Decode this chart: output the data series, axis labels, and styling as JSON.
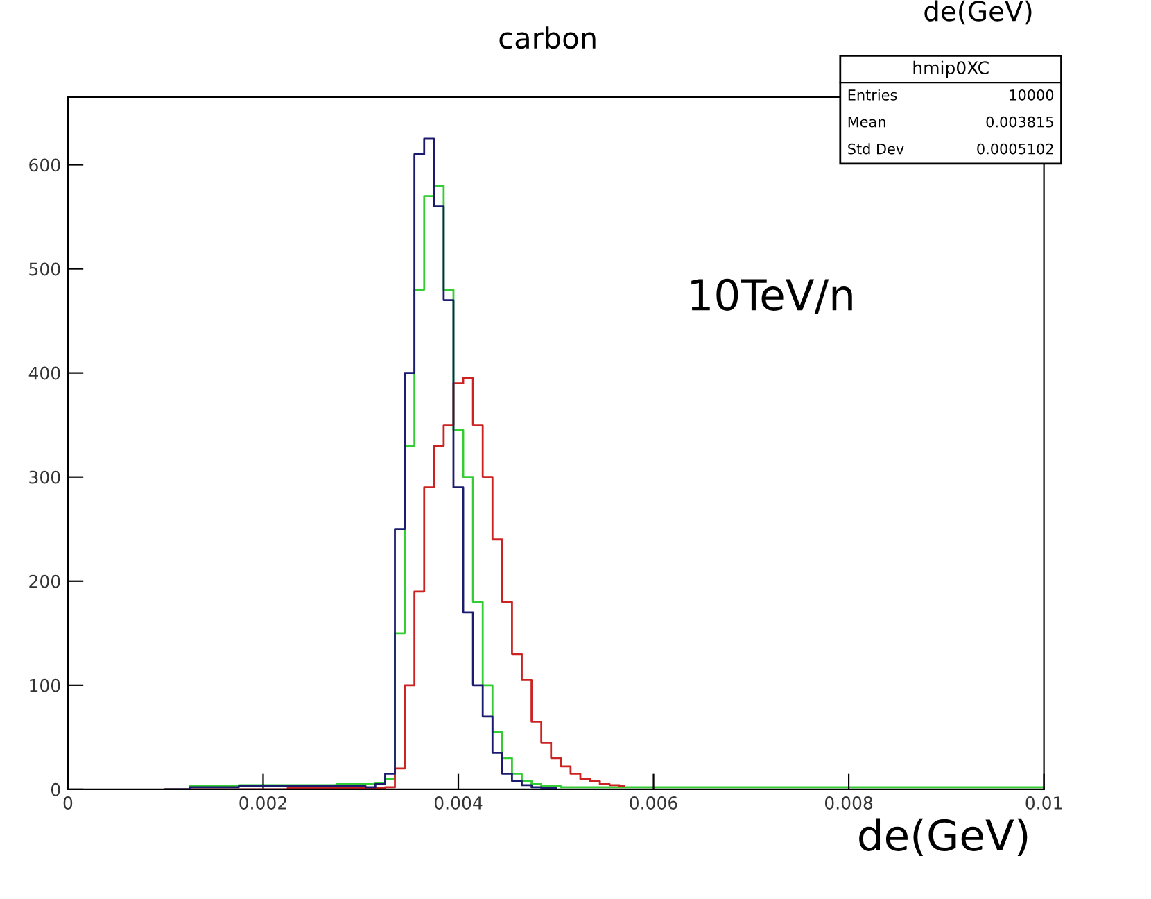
{
  "chart_data": {
    "type": "step",
    "title": "carbon",
    "xlabel": "de(GeV)",
    "annotations": [
      "10TeV/n",
      "hmip0XC",
      "Entries",
      "10000",
      "Mean",
      "0.003815",
      "Std Dev",
      "0.0005102",
      "de(GeV)"
    ],
    "xlim": [
      0,
      0.01
    ],
    "ylim": [
      0,
      665
    ],
    "xticks": [
      0,
      0.002,
      0.004,
      0.006,
      0.008,
      {
        "value": 0.01,
        "label": "0.01"
      }
    ],
    "yticks": [
      0,
      100,
      200,
      300,
      400,
      500,
      600
    ],
    "grid": false,
    "legend": false,
    "x": [
      0.001,
      0.0015,
      0.002,
      0.0025,
      0.003,
      0.0031,
      0.0032,
      0.0033,
      0.0034,
      0.0035,
      0.0036,
      0.0037,
      0.0038,
      0.0039,
      0.004,
      0.0041,
      0.0042,
      0.0043,
      0.0044,
      0.0045,
      0.0046,
      0.0047,
      0.0048,
      0.0049,
      0.005,
      0.0051,
      0.0052,
      0.0053,
      0.0054,
      0.0055,
      0.0056,
      0.0057,
      0.0058,
      0.0059,
      0.006,
      0.007,
      0.008,
      0.009,
      0.01
    ],
    "series": [
      {
        "color": "#1a1a6e",
        "x": [
          0.001,
          0.0015,
          0.002,
          0.0025,
          0.003,
          0.0031,
          0.0032,
          0.0033,
          0.0034,
          0.0035,
          0.0036,
          0.0037,
          0.0038,
          0.0039,
          0.004,
          0.0041,
          0.0042,
          0.0043,
          0.0044,
          0.0045,
          0.0046,
          0.0047,
          0.0048,
          0.0049,
          0.005
        ],
        "values": [
          0,
          2,
          3,
          3,
          3,
          2,
          5,
          15,
          250,
          400,
          610,
          625,
          560,
          470,
          290,
          170,
          100,
          70,
          35,
          15,
          8,
          4,
          2,
          1,
          1
        ]
      },
      {
        "color": "#cc2222",
        "values": [
          0,
          0,
          0,
          1,
          1,
          1,
          1,
          2,
          20,
          100,
          190,
          290,
          330,
          350,
          390,
          395,
          350,
          300,
          240,
          180,
          130,
          105,
          65,
          45,
          30,
          22,
          15,
          10,
          8,
          5,
          4,
          3
        ],
        "x": [
          0.001,
          0.0015,
          0.002,
          0.0025,
          0.003,
          0.0031,
          0.0032,
          0.0033,
          0.0034,
          0.0035,
          0.0036,
          0.0037,
          0.0038,
          0.0039,
          0.004,
          0.0041,
          0.0042,
          0.0043,
          0.0044,
          0.0045,
          0.0046,
          0.0047,
          0.0048,
          0.0049,
          0.005,
          0.0051,
          0.0052,
          0.0053,
          0.0054,
          0.0055,
          0.0056,
          0.0057
        ]
      },
      {
        "color": "#33cc33",
        "values": [
          0,
          3,
          4,
          4,
          5,
          5,
          6,
          10,
          150,
          330,
          480,
          570,
          580,
          480,
          345,
          300,
          180,
          100,
          55,
          30,
          15,
          8,
          5,
          3,
          3,
          2,
          2,
          2,
          2,
          2,
          2,
          2,
          2,
          2,
          2,
          2,
          2,
          2,
          2
        ]
      }
    ]
  }
}
